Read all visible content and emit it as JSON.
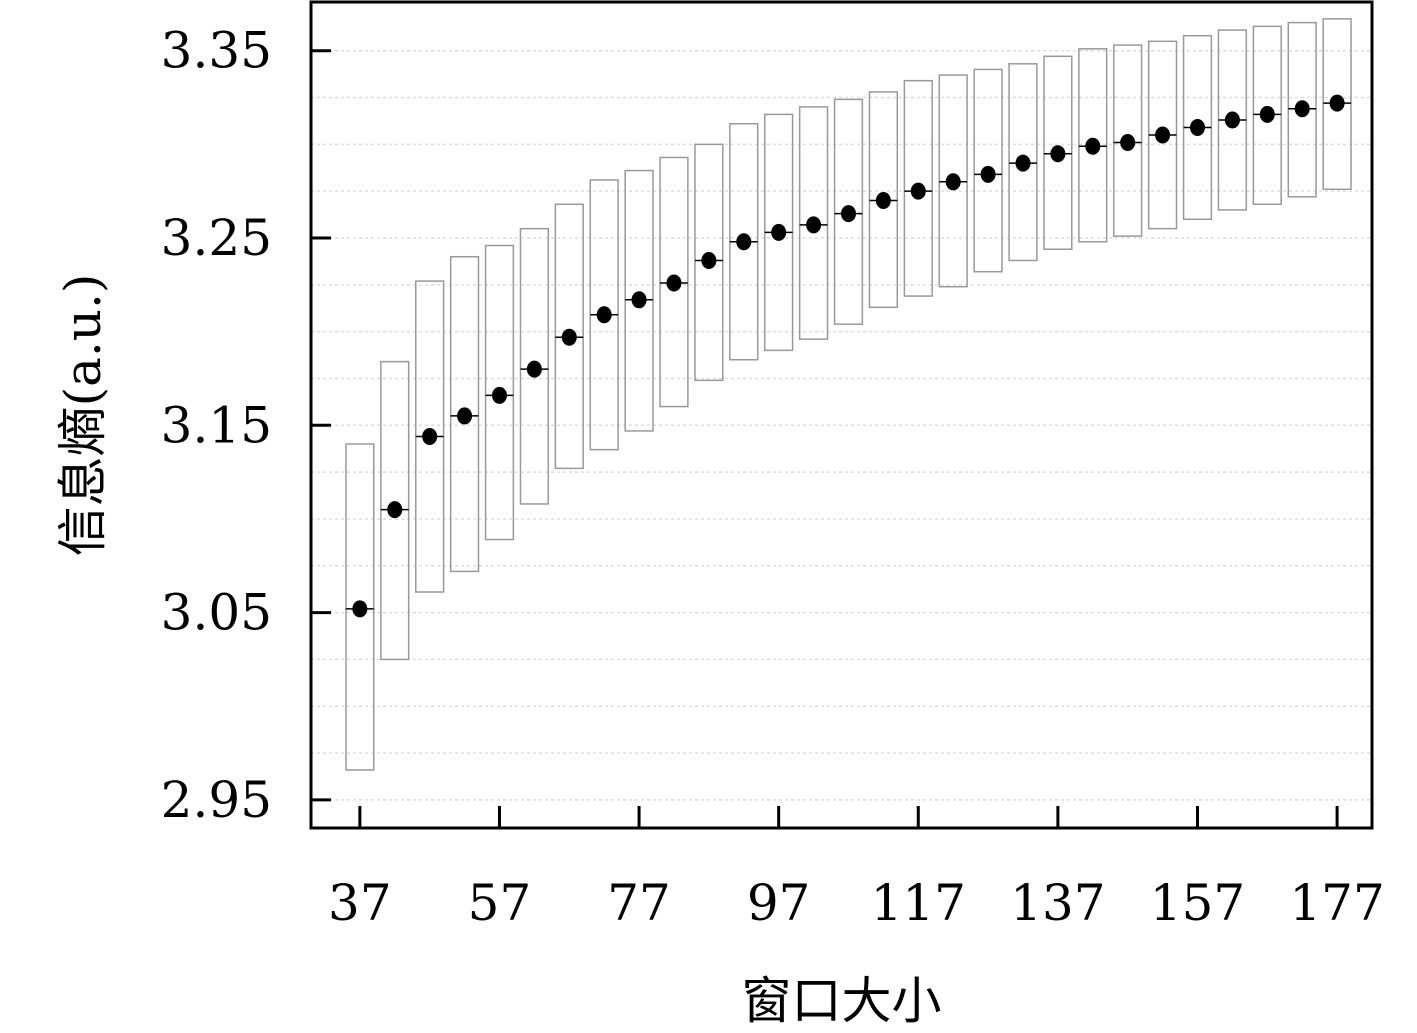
{
  "chart_data": {
    "type": "box",
    "xlabel": "窗口大小",
    "ylabel": "信息熵(a.u.)",
    "title": "",
    "x_ticks": [
      37,
      57,
      77,
      97,
      117,
      137,
      157,
      177
    ],
    "x_tick_labels": [
      "37",
      "57",
      "77",
      "97",
      "117",
      "137",
      "157",
      "177"
    ],
    "y_ticks": [
      2.95,
      3.05,
      3.15,
      3.25,
      3.35
    ],
    "y_tick_labels": [
      "2.95",
      "3.05",
      "3.15",
      "3.25",
      "3.35"
    ],
    "xlim": [
      30,
      182
    ],
    "ylim": [
      2.935,
      3.376
    ],
    "grid": "horizontal dotted",
    "legend": "none",
    "series": [
      {
        "x": [
          37,
          42,
          47,
          52,
          57,
          62,
          67,
          72,
          77,
          82,
          87,
          92,
          97,
          102,
          107,
          112,
          117,
          122,
          127,
          132,
          137,
          142,
          147,
          152,
          157,
          162,
          167,
          172,
          177
        ],
        "mean": [
          3.052,
          3.105,
          3.144,
          3.155,
          3.166,
          3.18,
          3.197,
          3.209,
          3.217,
          3.226,
          3.238,
          3.248,
          3.253,
          3.257,
          3.263,
          3.27,
          3.275,
          3.28,
          3.284,
          3.29,
          3.295,
          3.299,
          3.301,
          3.305,
          3.309,
          3.313,
          3.316,
          3.319,
          3.322
        ],
        "low": [
          2.966,
          3.025,
          3.061,
          3.072,
          3.089,
          3.108,
          3.127,
          3.137,
          3.147,
          3.16,
          3.174,
          3.185,
          3.19,
          3.196,
          3.204,
          3.213,
          3.219,
          3.224,
          3.232,
          3.238,
          3.244,
          3.248,
          3.251,
          3.255,
          3.26,
          3.265,
          3.268,
          3.272,
          3.276
        ],
        "high": [
          3.14,
          3.184,
          3.227,
          3.24,
          3.246,
          3.255,
          3.268,
          3.281,
          3.286,
          3.293,
          3.3,
          3.311,
          3.316,
          3.32,
          3.324,
          3.328,
          3.334,
          3.337,
          3.34,
          3.343,
          3.347,
          3.351,
          3.353,
          3.355,
          3.358,
          3.361,
          3.363,
          3.365,
          3.367
        ],
        "median": [
          3.052,
          3.105,
          3.144,
          3.155,
          3.166,
          3.18,
          3.197,
          3.209,
          3.217,
          3.226,
          3.238,
          3.248,
          3.253,
          3.257,
          3.263,
          3.27,
          3.275,
          3.28,
          3.284,
          3.29,
          3.295,
          3.299,
          3.301,
          3.305,
          3.309,
          3.313,
          3.316,
          3.319,
          3.322
        ]
      }
    ],
    "colors": {
      "box_edge": "#999999",
      "marker": "#000000",
      "frame": "#000000",
      "grid": "#dddddd"
    }
  }
}
